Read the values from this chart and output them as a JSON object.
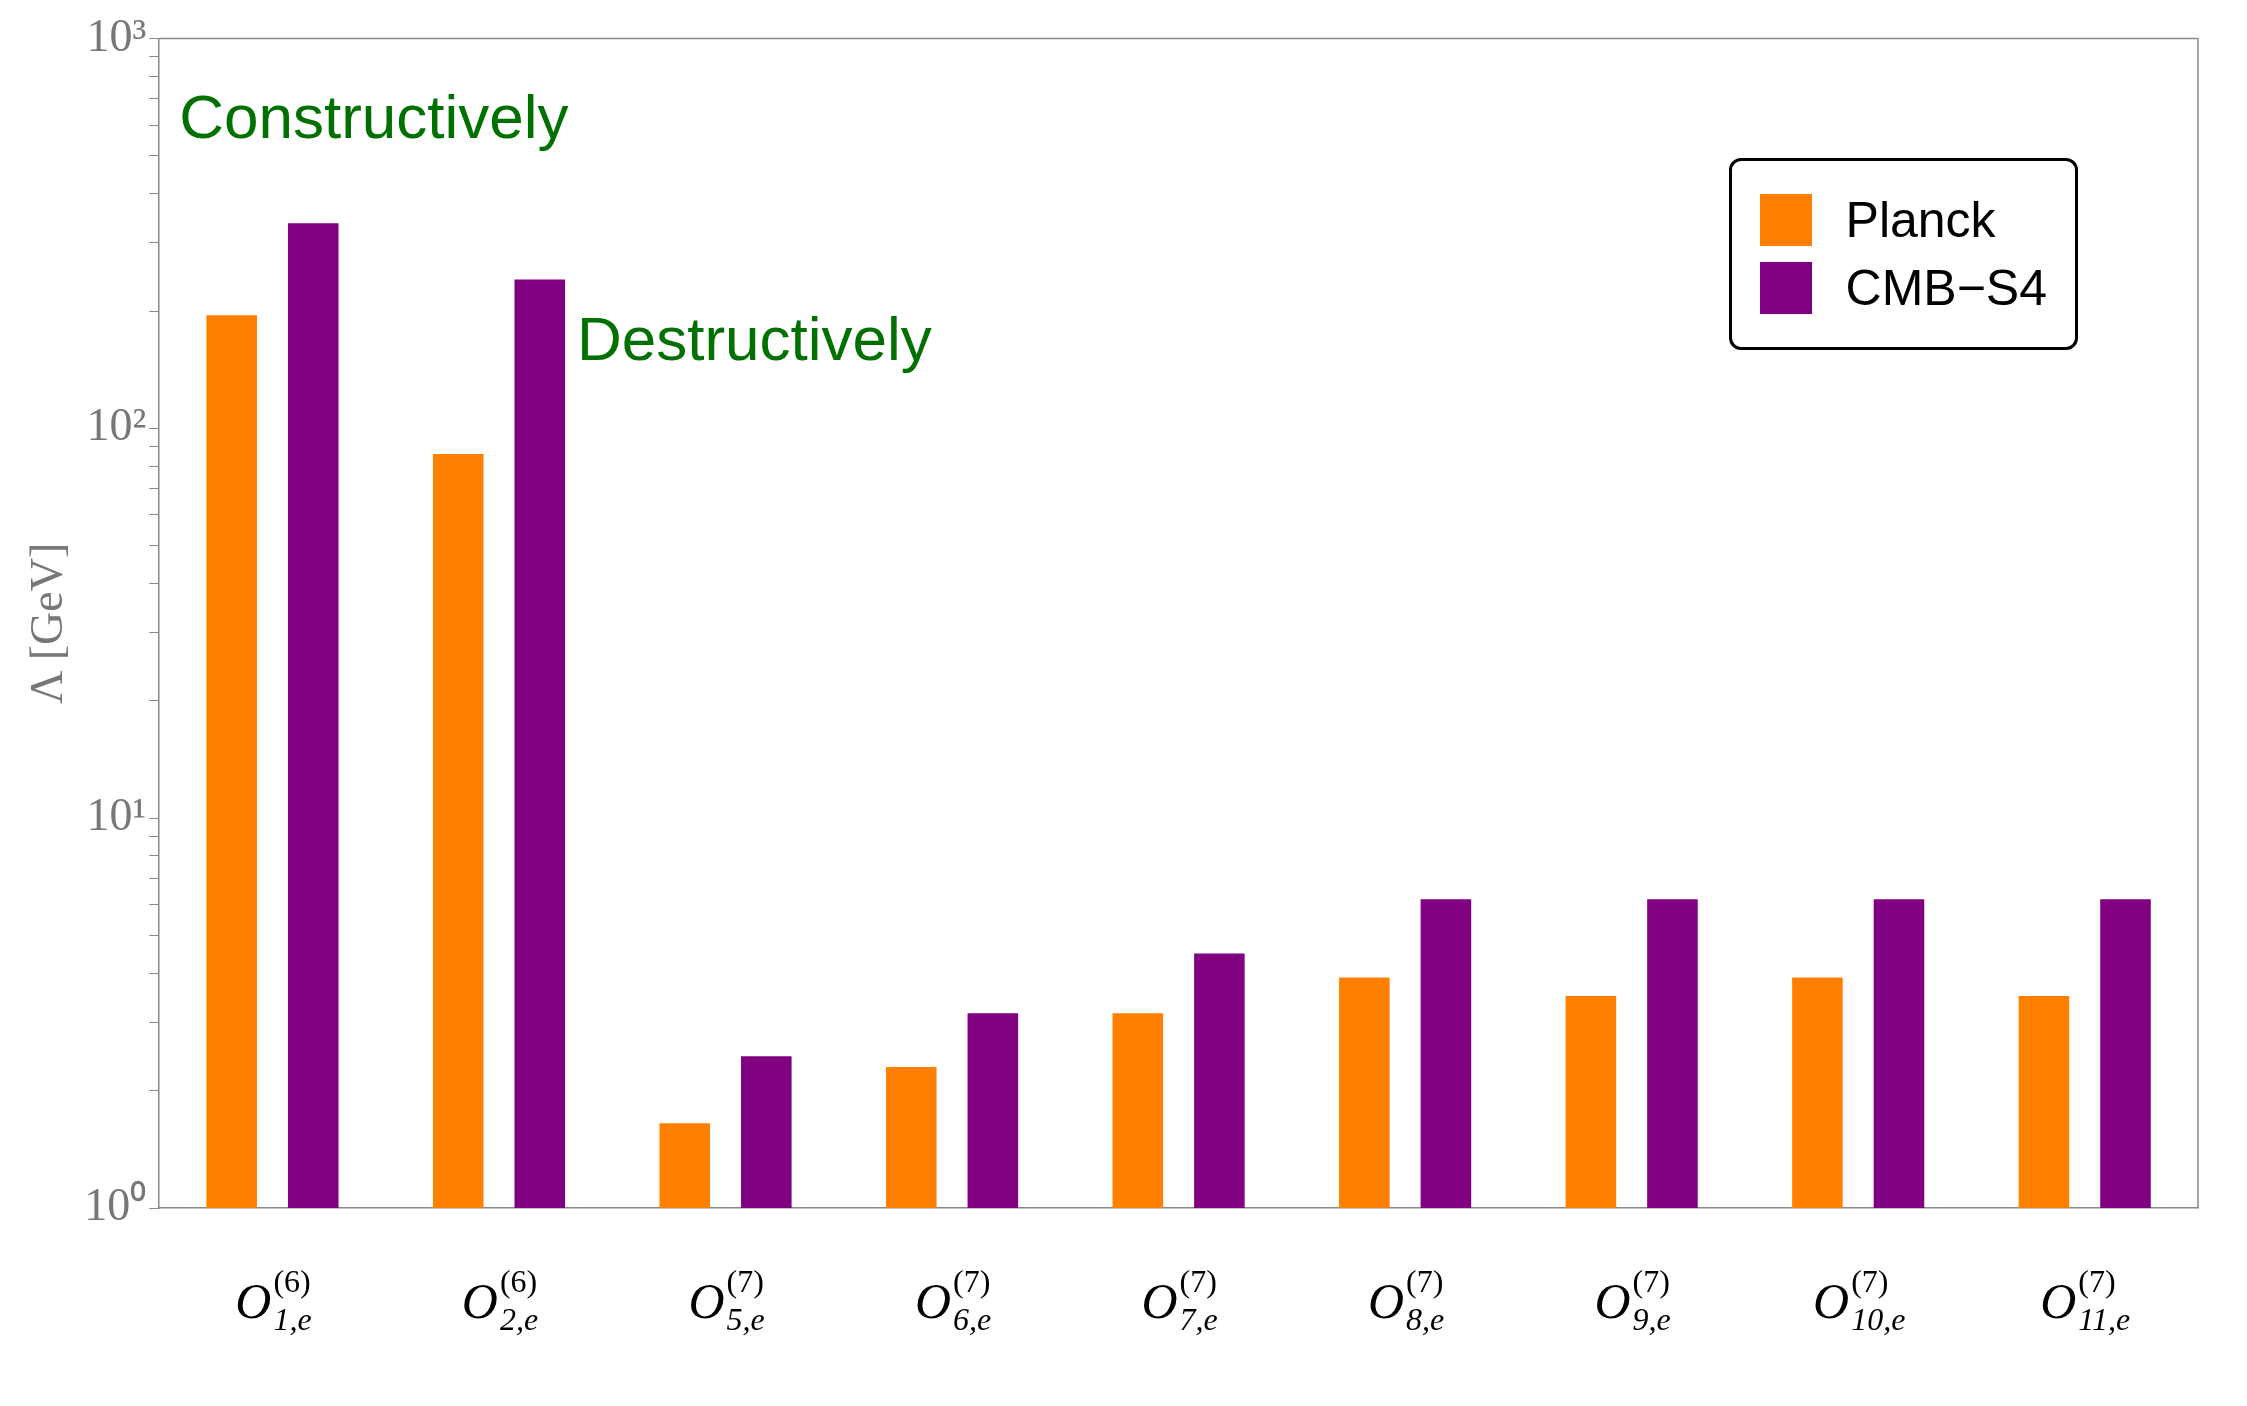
{
  "chart_data": {
    "type": "bar",
    "ylabel": "Λ [GeV]",
    "log": "y",
    "ylim": [
      1,
      1000
    ],
    "yticks": [
      {
        "value": 1,
        "label": "10⁰"
      },
      {
        "value": 2,
        "label": null
      },
      {
        "value": 3,
        "label": null
      },
      {
        "value": 4,
        "label": null
      },
      {
        "value": 5,
        "label": null
      },
      {
        "value": 6,
        "label": null
      },
      {
        "value": 7,
        "label": null
      },
      {
        "value": 8,
        "label": null
      },
      {
        "value": 9,
        "label": null
      },
      {
        "value": 10,
        "label": "10¹"
      },
      {
        "value": 20,
        "label": null
      },
      {
        "value": 30,
        "label": null
      },
      {
        "value": 40,
        "label": null
      },
      {
        "value": 50,
        "label": null
      },
      {
        "value": 60,
        "label": null
      },
      {
        "value": 70,
        "label": null
      },
      {
        "value": 80,
        "label": null
      },
      {
        "value": 90,
        "label": null
      },
      {
        "value": 100,
        "label": "10²"
      },
      {
        "value": 200,
        "label": null
      },
      {
        "value": 300,
        "label": null
      },
      {
        "value": 400,
        "label": null
      },
      {
        "value": 500,
        "label": null
      },
      {
        "value": 600,
        "label": null
      },
      {
        "value": 700,
        "label": null
      },
      {
        "value": 800,
        "label": null
      },
      {
        "value": 900,
        "label": null
      },
      {
        "value": 1000,
        "label": "10³"
      }
    ],
    "categories": [
      "O$^{(6)}$$_{1,e}$",
      "O$^{(6)}$$_{2,e}$",
      "O$^{(7)}$$_{5,e}$",
      "O$^{(7)}$$_{6,e}$",
      "O$^{(7)}$$_{7,e}$",
      "O$^{(7)}$$_{8,e}$",
      "O$^{(7)}$$_{9,e}$",
      "O$^{(7)}$$_{10,e}$",
      "O$^{(7)}$$_{11,e}$"
    ],
    "series": [
      {
        "name": "Planck",
        "color": "#ff7f00",
        "values": [
          195,
          86,
          1.65,
          2.3,
          3.16,
          3.9,
          3.5,
          3.9,
          3.5
        ]
      },
      {
        "name": "CMB−S4",
        "color": "#800080",
        "values": [
          336,
          241,
          2.45,
          3.16,
          4.5,
          6.2,
          6.2,
          6.2,
          6.2
        ]
      }
    ],
    "annotations": [
      "Constructively",
      "Destructively"
    ],
    "legend": "top right",
    "grid": false
  }
}
